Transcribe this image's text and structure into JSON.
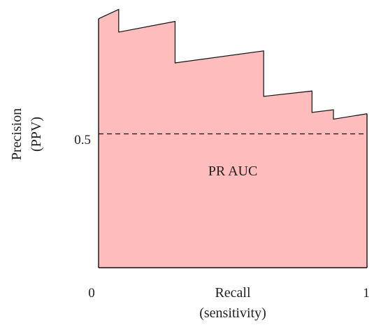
{
  "chart_data": {
    "type": "area",
    "title": "",
    "xlabel": [
      "Recall",
      "(sensitivity)"
    ],
    "ylabel": [
      "Precision",
      "(PPV)"
    ],
    "xlim": [
      0,
      1
    ],
    "ylim": [
      0,
      1
    ],
    "x_ticks": [
      {
        "value": 0,
        "label": "0"
      },
      {
        "value": 1,
        "label": "1"
      }
    ],
    "y_ticks": [
      {
        "value": 0.5,
        "label": "0.5"
      }
    ],
    "baseline": {
      "value": 0.5,
      "style": "dashed"
    },
    "annotation": "PR AUC",
    "grid": false,
    "legend": "none",
    "fill_color": "#ffbcbc",
    "curve": [
      {
        "x": 0.0,
        "y": 0.93
      },
      {
        "x": 0.075,
        "y": 0.965
      },
      {
        "x": 0.075,
        "y": 0.88
      },
      {
        "x": 0.285,
        "y": 0.92
      },
      {
        "x": 0.285,
        "y": 0.765
      },
      {
        "x": 0.615,
        "y": 0.81
      },
      {
        "x": 0.615,
        "y": 0.64
      },
      {
        "x": 0.795,
        "y": 0.66
      },
      {
        "x": 0.795,
        "y": 0.58
      },
      {
        "x": 0.875,
        "y": 0.59
      },
      {
        "x": 0.875,
        "y": 0.555
      },
      {
        "x": 1.0,
        "y": 0.575
      }
    ]
  }
}
